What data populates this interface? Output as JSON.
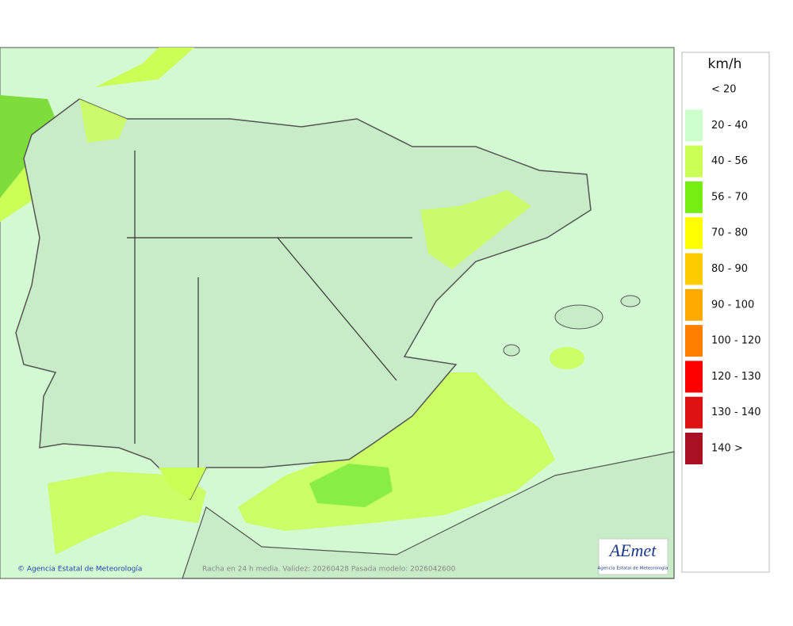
{
  "legend": {
    "title": "km/h",
    "items": [
      {
        "label": "< 20",
        "color": "#ffffff"
      },
      {
        "label": "20 - 40",
        "color": "#ccffcc"
      },
      {
        "label": "40 - 56",
        "color": "#ccff55"
      },
      {
        "label": "56 - 70",
        "color": "#77ee11"
      },
      {
        "label": "70 - 80",
        "color": "#ffff00"
      },
      {
        "label": "80 - 90",
        "color": "#ffcc00"
      },
      {
        "label": "90 - 100",
        "color": "#ffaa00"
      },
      {
        "label": "100 - 120",
        "color": "#ff8000"
      },
      {
        "label": "120 - 130",
        "color": "#ff0000"
      },
      {
        "label": "130 - 140",
        "color": "#dd1111"
      },
      {
        "label": "140 >",
        "color": "#aa1122"
      }
    ]
  },
  "footer": {
    "credit": "© Agencia Estatal de Meteorología",
    "caption": "Racha en 24 h media. Validez: 20260428 Pasada modelo: 2026042600"
  },
  "logo": {
    "name": "AEmet",
    "subtitle": "Agencia Estatal de Meteorología"
  }
}
